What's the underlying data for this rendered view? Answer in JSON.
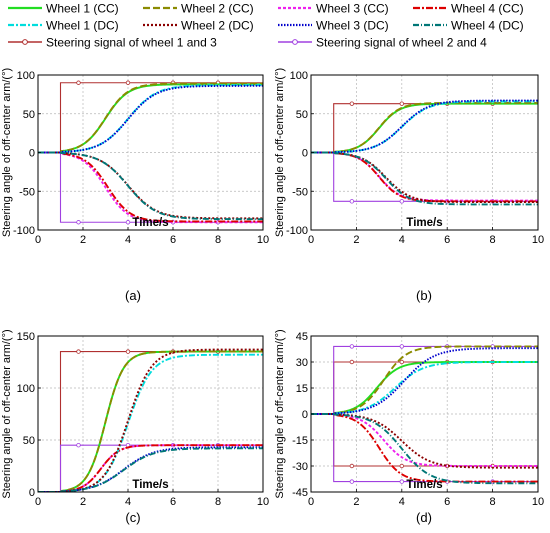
{
  "legend": {
    "entries": [
      {
        "key": "w1cc",
        "label": "Wheel 1 (CC)",
        "color": "#22dd22",
        "dash": ""
      },
      {
        "key": "w2cc",
        "label": "Wheel 2 (CC)",
        "color": "#8b8b00",
        "dash": "7,3"
      },
      {
        "key": "w3cc",
        "label": "Wheel 3 (CC)",
        "color": "#ee22ee",
        "dash": "3,2"
      },
      {
        "key": "w4cc",
        "label": "Wheel 4 (CC)",
        "color": "#dd0000",
        "dash": "7,2,2,2"
      },
      {
        "key": "w1dc",
        "label": "Wheel 1 (DC)",
        "color": "#00dddd",
        "dash": "6,2,2,2"
      },
      {
        "key": "w2dc",
        "label": "Wheel 2 (DC)",
        "color": "#8b0000",
        "dash": "2,2"
      },
      {
        "key": "w3dc",
        "label": "Wheel 3 (DC)",
        "color": "#0000cc",
        "dash": "1.5,1.5"
      },
      {
        "key": "w4dc",
        "label": "Wheel 4 (DC)",
        "color": "#007777",
        "dash": "6,2,1,2"
      },
      {
        "key": "sig13",
        "label": "Steering signal of wheel 1 and 3",
        "color": "#b03030",
        "dash": "",
        "marker": true
      },
      {
        "key": "sig24",
        "label": "Steering signal of wheel 2 and 4",
        "color": "#a040e0",
        "dash": "",
        "marker": true
      }
    ]
  },
  "chart_data": [
    {
      "type": "line",
      "panel": "(a)",
      "xlabel": "Time/s",
      "ylabel": "Steering angle of off-center arm/(°)",
      "xlim": [
        0,
        10
      ],
      "ylim": [
        -100,
        100
      ],
      "xticks": [
        0,
        2,
        4,
        6,
        8,
        10
      ],
      "yticks": [
        -100,
        -50,
        0,
        50,
        100
      ],
      "grid": true,
      "signals": {
        "sig13": 90,
        "sig24": -90,
        "t_step": 1
      },
      "series": [
        {
          "key": "w1cc",
          "final": 88,
          "t50": 3.0,
          "k": 2.0
        },
        {
          "key": "w2cc",
          "final": 89,
          "t50": 3.0,
          "k": 2.0
        },
        {
          "key": "w3cc",
          "final": -90,
          "t50": 3.0,
          "k": 2.0
        },
        {
          "key": "w4cc",
          "final": -89,
          "t50": 3.1,
          "k": 2.0
        },
        {
          "key": "w1dc",
          "final": 87,
          "t50": 4.0,
          "k": 1.6
        },
        {
          "key": "w2dc",
          "final": -85,
          "t50": 4.0,
          "k": 1.6
        },
        {
          "key": "w3dc",
          "final": 86,
          "t50": 4.0,
          "k": 1.6
        },
        {
          "key": "w4dc",
          "final": -86,
          "t50": 4.0,
          "k": 1.6
        }
      ]
    },
    {
      "type": "line",
      "panel": "(b)",
      "xlabel": "Time/s",
      "ylabel": "Steering angle of off-center arm/(°)",
      "xlim": [
        0,
        10
      ],
      "ylim": [
        -100,
        100
      ],
      "xticks": [
        0,
        2,
        4,
        6,
        8,
        10
      ],
      "yticks": [
        -100,
        -50,
        0,
        50,
        100
      ],
      "grid": true,
      "signals": {
        "sig13": 63,
        "sig24": -63,
        "t_step": 1
      },
      "series": [
        {
          "key": "w1cc",
          "final": 63,
          "t50": 3.0,
          "k": 2.2
        },
        {
          "key": "w2cc",
          "final": 64,
          "t50": 3.0,
          "k": 2.2
        },
        {
          "key": "w3cc",
          "final": -62,
          "t50": 3.0,
          "k": 2.2
        },
        {
          "key": "w4cc",
          "final": -63,
          "t50": 3.0,
          "k": 2.2
        },
        {
          "key": "w1dc",
          "final": 66,
          "t50": 4.0,
          "k": 1.7
        },
        {
          "key": "w2dc",
          "final": -64,
          "t50": 3.3,
          "k": 1.9
        },
        {
          "key": "w3dc",
          "final": 67,
          "t50": 4.0,
          "k": 1.7
        },
        {
          "key": "w4dc",
          "final": -67,
          "t50": 3.3,
          "k": 1.9
        }
      ]
    },
    {
      "type": "line",
      "panel": "(c)",
      "xlabel": "Time/s",
      "ylabel": "Steering angle of off-center arm/(°)",
      "xlim": [
        0,
        10
      ],
      "ylim": [
        0,
        150
      ],
      "xticks": [
        0,
        2,
        4,
        6,
        8,
        10
      ],
      "yticks": [
        0,
        50,
        100,
        150
      ],
      "grid": true,
      "signals": {
        "sig13": 135,
        "sig24": 45,
        "t_step": 1
      },
      "series": [
        {
          "key": "w1cc",
          "final": 135,
          "t50": 3.0,
          "k": 2.5
        },
        {
          "key": "w2cc",
          "final": 135,
          "t50": 3.0,
          "k": 2.5
        },
        {
          "key": "w3cc",
          "final": 45,
          "t50": 2.8,
          "k": 2.5
        },
        {
          "key": "w4cc",
          "final": 45,
          "t50": 2.8,
          "k": 2.5
        },
        {
          "key": "w1dc",
          "final": 132,
          "t50": 4.0,
          "k": 1.9
        },
        {
          "key": "w2dc",
          "final": 137,
          "t50": 4.0,
          "k": 1.9
        },
        {
          "key": "w3dc",
          "final": 43,
          "t50": 3.8,
          "k": 1.5
        },
        {
          "key": "w4dc",
          "final": 42,
          "t50": 3.8,
          "k": 1.5
        }
      ]
    },
    {
      "type": "line",
      "panel": "(d)",
      "xlabel": "Time/s",
      "ylabel": "Steering angle of off-center arm/(°)",
      "xlim": [
        0,
        10
      ],
      "ylim": [
        -45,
        45
      ],
      "xticks": [
        0,
        2,
        4,
        6,
        8,
        10
      ],
      "yticks": [
        -45,
        -30,
        -15,
        0,
        15,
        30,
        45
      ],
      "grid": true,
      "signals": {
        "sig13": 30,
        "sig24": 39,
        "sig13_neg": -30,
        "sig24_neg": -39,
        "t_step": 1
      },
      "series": [
        {
          "key": "w1cc",
          "final": 30,
          "t50": 2.9,
          "k": 2.1
        },
        {
          "key": "w2cc",
          "final": 39,
          "t50": 3.2,
          "k": 2.0
        },
        {
          "key": "w3cc",
          "final": -30,
          "t50": 3.2,
          "k": 2.0
        },
        {
          "key": "w4cc",
          "final": -39,
          "t50": 3.0,
          "k": 2.1
        },
        {
          "key": "w1dc",
          "final": 30,
          "t50": 3.7,
          "k": 1.6
        },
        {
          "key": "w2dc",
          "final": -31,
          "t50": 4.0,
          "k": 1.6
        },
        {
          "key": "w3dc",
          "final": 38,
          "t50": 4.1,
          "k": 1.5
        },
        {
          "key": "w4dc",
          "final": -40,
          "t50": 4.0,
          "k": 1.6
        }
      ]
    }
  ]
}
